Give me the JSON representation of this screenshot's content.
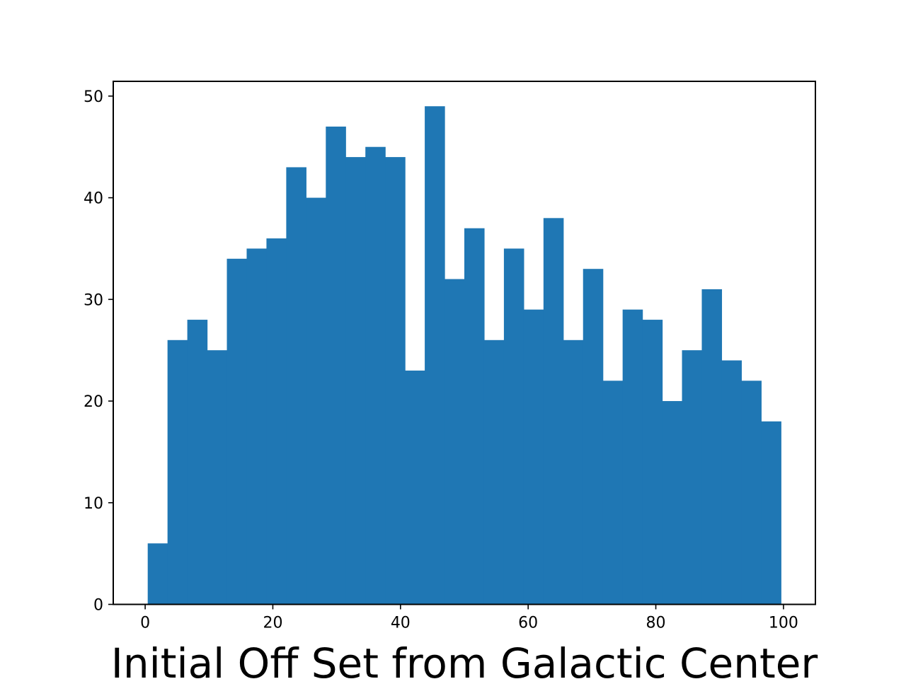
{
  "chart_data": {
    "type": "bar",
    "title": "",
    "xlabel": "Initial Off Set from Galactic Center",
    "ylabel": "",
    "xlim": [
      -5,
      105
    ],
    "ylim": [
      0,
      51.45
    ],
    "x_ticks": [
      0,
      20,
      40,
      60,
      80,
      100
    ],
    "y_ticks": [
      0,
      10,
      20,
      30,
      40,
      50
    ],
    "bin_edges": [
      0.4,
      3.5,
      6.6,
      9.7,
      12.8,
      15.9,
      19.0,
      22.1,
      25.2,
      28.3,
      31.4,
      34.5,
      37.6,
      40.7,
      43.8,
      46.9,
      50.0,
      53.1,
      56.2,
      59.3,
      62.4,
      65.5,
      68.6,
      71.7,
      74.8,
      77.9,
      81.0,
      84.1,
      87.2,
      90.3,
      93.4,
      96.5,
      99.6
    ],
    "values": [
      6,
      26,
      28,
      25,
      34,
      35,
      36,
      43,
      40,
      47,
      44,
      45,
      44,
      23,
      49,
      32,
      37,
      26,
      35,
      29,
      38,
      26,
      33,
      22,
      29,
      28,
      20,
      25,
      31,
      24,
      22,
      18
    ],
    "grid": false,
    "colors": {
      "bar": "#1f77b4",
      "axis": "#000000",
      "background": "#ffffff"
    }
  }
}
